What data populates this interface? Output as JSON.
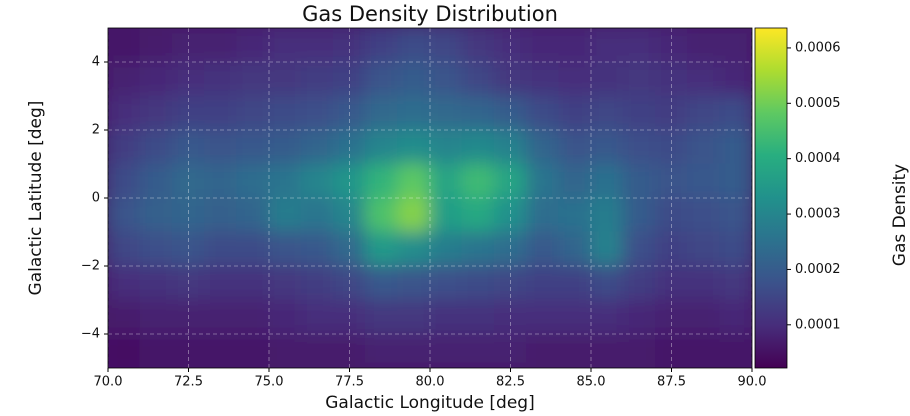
{
  "chart_data": {
    "type": "heatmap",
    "title": "Gas Density Distribution",
    "x_label": "Galactic Longitude [deg]",
    "y_label": "Galactic Latitude [deg]",
    "colorbar_label": "Gas Density",
    "colormap": "viridis",
    "grid": true,
    "x": [
      70.5,
      71.5,
      72.5,
      73.5,
      74.5,
      75.5,
      76.5,
      77.5,
      78.5,
      79.5,
      80.5,
      81.5,
      82.5,
      83.5,
      84.5,
      85.5,
      86.5,
      87.5,
      88.5,
      89.5
    ],
    "y": [
      4.5,
      3.5,
      2.5,
      1.5,
      0.5,
      -0.5,
      -1.5,
      -2.5,
      -3.5,
      -4.5
    ],
    "values": [
      [
        6e-05,
        7e-05,
        8e-05,
        8e-05,
        9e-05,
        0.0001,
        0.0001,
        0.00011,
        0.00014,
        0.00016,
        0.00015,
        0.00012,
        0.0001,
        9e-05,
        9e-05,
        0.0001,
        0.0001,
        9e-05,
        8e-05,
        8e-05
      ],
      [
        8e-05,
        9e-05,
        0.0001,
        0.00011,
        0.00012,
        0.00012,
        0.00013,
        0.00014,
        0.00018,
        0.0002,
        0.00018,
        0.00015,
        0.00012,
        0.00011,
        0.0001,
        0.00011,
        0.00012,
        0.00011,
        0.0001,
        9e-05
      ],
      [
        0.0001,
        0.00012,
        0.00014,
        0.00014,
        0.00015,
        0.00016,
        0.00017,
        0.00019,
        0.00023,
        0.00024,
        0.00023,
        0.00022,
        0.0002,
        0.00016,
        0.00014,
        0.00015,
        0.00014,
        0.00013,
        0.00015,
        0.00016
      ],
      [
        0.00013,
        0.00016,
        0.00019,
        0.00018,
        0.00019,
        0.0002,
        0.00022,
        0.00025,
        0.0003,
        0.00032,
        0.0003,
        0.00031,
        0.00029,
        0.00022,
        0.00018,
        0.00019,
        0.00017,
        0.00016,
        0.00018,
        0.0002
      ],
      [
        0.00016,
        0.0002,
        0.00023,
        0.00022,
        0.00024,
        0.00026,
        0.0003,
        0.00034,
        0.00042,
        0.00048,
        0.00038,
        0.00044,
        0.00038,
        0.00026,
        0.00022,
        0.00025,
        0.0002,
        0.00018,
        0.00019,
        0.0002
      ],
      [
        0.00018,
        0.00021,
        0.00022,
        0.00021,
        0.00022,
        0.00028,
        0.00026,
        0.0003,
        0.00046,
        0.00052,
        0.00036,
        0.00039,
        0.00033,
        0.00024,
        0.00025,
        0.00028,
        0.0002,
        0.00016,
        0.00017,
        0.00018
      ],
      [
        0.00015,
        0.00017,
        0.00018,
        0.00016,
        0.00016,
        0.00018,
        0.00019,
        0.00023,
        0.00035,
        0.00032,
        0.00028,
        0.00026,
        0.00024,
        0.00019,
        0.00022,
        0.00029,
        0.00017,
        0.00014,
        0.00015,
        0.00016
      ],
      [
        0.0001,
        0.00011,
        0.00012,
        0.00011,
        0.00011,
        0.00012,
        0.00013,
        0.00015,
        0.00019,
        0.00018,
        0.00017,
        0.00016,
        0.00015,
        0.00014,
        0.00014,
        0.00016,
        0.00013,
        0.00011,
        0.00011,
        0.00012
      ],
      [
        7e-05,
        8e-05,
        8e-05,
        8e-05,
        8e-05,
        9e-05,
        0.0001,
        0.0001,
        0.00012,
        0.00012,
        0.00011,
        0.00011,
        0.0001,
        0.0001,
        0.0001,
        0.0001,
        9e-05,
        8e-05,
        8e-05,
        9e-05
      ],
      [
        5e-05,
        6e-05,
        6e-05,
        6e-05,
        6e-05,
        7e-05,
        7e-05,
        7e-05,
        8e-05,
        8e-05,
        8e-05,
        8e-05,
        8e-05,
        7e-05,
        7e-05,
        7e-05,
        7e-05,
        6e-05,
        6e-05,
        6e-05
      ]
    ],
    "xlim": [
      70,
      90
    ],
    "xticks": [
      {
        "value": 70,
        "label": "70.0"
      },
      {
        "value": 72.5,
        "label": "72.5"
      },
      {
        "value": 75,
        "label": "75.0"
      },
      {
        "value": 77.5,
        "label": "77.5"
      },
      {
        "value": 80,
        "label": "80.0"
      },
      {
        "value": 82.5,
        "label": "82.5"
      },
      {
        "value": 85,
        "label": "85.0"
      },
      {
        "value": 87.5,
        "label": "87.5"
      },
      {
        "value": 90,
        "label": "90.0"
      }
    ],
    "ylim": [
      -5,
      5
    ],
    "yticks": [
      {
        "value": -4,
        "label": "−4"
      },
      {
        "value": -2,
        "label": "−2"
      },
      0,
      2,
      4
    ],
    "clim": [
      2.2e-05,
      0.000636
    ],
    "cticks": [
      0.0001,
      0.0002,
      0.0003,
      0.0004,
      0.0005,
      0.0006
    ]
  }
}
